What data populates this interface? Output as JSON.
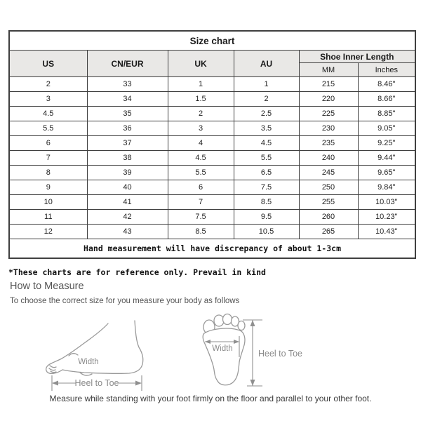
{
  "colors": {
    "header_bg": "#e9e8e6",
    "table_border": "#3f3f3f",
    "diagram_stroke": "#9a9a9a",
    "note_text": "#111111",
    "heading_text": "#555555"
  },
  "size_chart": {
    "title": "Size chart",
    "columns": [
      "US",
      "CN/EUR",
      "UK",
      "AU"
    ],
    "inner_length_header": "Shoe Inner Length",
    "inner_length_units": [
      "MM",
      "Inches"
    ],
    "rows": [
      [
        "2",
        "33",
        "1",
        "1",
        "215",
        "8.46\""
      ],
      [
        "3",
        "34",
        "1.5",
        "2",
        "220",
        "8.66\""
      ],
      [
        "4.5",
        "35",
        "2",
        "2.5",
        "225",
        "8.85\""
      ],
      [
        "5.5",
        "36",
        "3",
        "3.5",
        "230",
        "9.05\""
      ],
      [
        "6",
        "37",
        "4",
        "4.5",
        "235",
        "9.25\""
      ],
      [
        "7",
        "38",
        "4.5",
        "5.5",
        "240",
        "9.44\""
      ],
      [
        "8",
        "39",
        "5.5",
        "6.5",
        "245",
        "9.65\""
      ],
      [
        "9",
        "40",
        "6",
        "7.5",
        "250",
        "9.84\""
      ],
      [
        "10",
        "41",
        "7",
        "8.5",
        "255",
        "10.03\""
      ],
      [
        "11",
        "42",
        "7.5",
        "9.5",
        "260",
        "10.23\""
      ],
      [
        "12",
        "43",
        "8.5",
        "10.5",
        "265",
        "10.43\""
      ]
    ],
    "footer_note": "Hand measurement will have discrepancy of about 1-3cm"
  },
  "reference_note": "*These charts are for reference only. Prevail in kind",
  "how_to_measure": {
    "heading": "How to Measure",
    "subtitle": "To choose the correct size for you measure your body as follows",
    "side_view_diagram": {
      "width_label": "Width",
      "length_label": "Heel to Toe"
    },
    "sole_view_diagram": {
      "width_label": "Width",
      "length_label": "Heel to Toe"
    },
    "bottom_note": "Measure while standing with your foot firmly on the floor and parallel to your other foot."
  }
}
